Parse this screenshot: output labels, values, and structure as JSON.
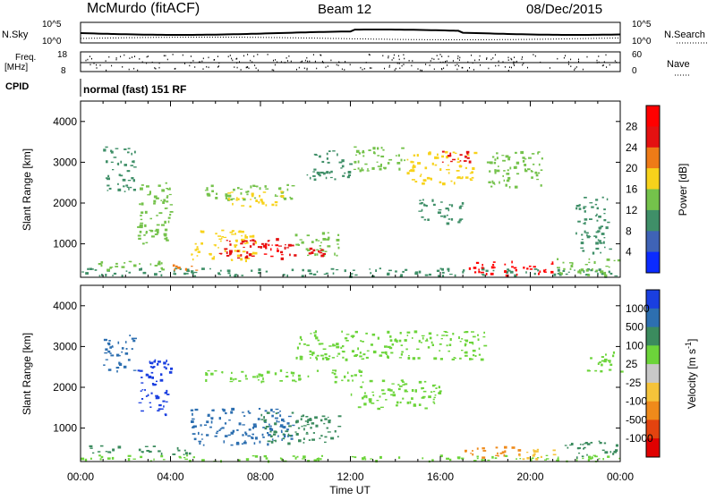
{
  "header": {
    "site": "McMurdo (fitACF)",
    "beam": "Beam 12",
    "date": "08/Dec/2015"
  },
  "strip_labels": {
    "nsky": "N.Sky",
    "freq_line1": "Freq.",
    "freq_line2": "[MHz]",
    "cpid": "CPID",
    "nsearch": "N.Search",
    "nave": "Nave",
    "cpid_text": "normal (fast) 151 RF",
    "nsky_tick_top": "10^5",
    "nsky_tick_bot": "10^0",
    "freq_tick_top": "18",
    "freq_tick_bot": "8",
    "nave_tick_top": "60",
    "nave_tick_bot": "0",
    "nsearch_tick_top": "10^5",
    "nsearch_tick_bot": "10^0"
  },
  "chart_data": [
    {
      "type": "heatmap",
      "panel": "power",
      "ylabel": "Slant Range [km]",
      "xlabel": "",
      "colorbar_label": "Power [dB]",
      "ylim": [
        180,
        4500
      ],
      "xlim": [
        "00:00",
        "24:00"
      ],
      "y_ticks": [
        1000,
        2000,
        3000,
        4000
      ],
      "x_ticks": [
        "00:00",
        "04:00",
        "08:00",
        "12:00",
        "16:00",
        "20:00",
        "00:00"
      ],
      "colorbar_ticks": [
        "4",
        "8",
        "12",
        "16",
        "20",
        "24",
        "28"
      ],
      "colorbar_colors": [
        "#0b2bff",
        "#3f63b6",
        "#3f8f68",
        "#74c24b",
        "#f7d21b",
        "#ee7b17",
        "#e41111",
        "#ff0000"
      ],
      "regions": [
        {
          "t": [
            0.0,
            24.0
          ],
          "r": [
            220,
            420
          ],
          "level": 8
        },
        {
          "t": [
            0.3,
            3.7
          ],
          "r": [
            380,
            600
          ],
          "level": 12
        },
        {
          "t": [
            4.0,
            5.2
          ],
          "r": [
            330,
            520
          ],
          "level": 20
        },
        {
          "t": [
            4.8,
            7.8
          ],
          "r": [
            600,
            1350
          ],
          "level": 16
        },
        {
          "t": [
            6.0,
            9.5
          ],
          "r": [
            650,
            1150
          ],
          "level": 24
        },
        {
          "t": [
            8.0,
            9.0
          ],
          "r": [
            700,
            1000
          ],
          "level": 28
        },
        {
          "t": [
            9.5,
            11.5
          ],
          "r": [
            700,
            1300
          ],
          "level": 12
        },
        {
          "t": [
            10.0,
            11.2
          ],
          "r": [
            720,
            1000
          ],
          "level": 24
        },
        {
          "t": [
            17.2,
            21.0
          ],
          "r": [
            250,
            600
          ],
          "level": 28
        },
        {
          "t": [
            21.0,
            24.0
          ],
          "r": [
            250,
            650
          ],
          "level": 12
        },
        {
          "t": [
            1.0,
            2.4
          ],
          "r": [
            2300,
            3400
          ],
          "level": 8
        },
        {
          "t": [
            2.5,
            4.0
          ],
          "r": [
            1000,
            2600
          ],
          "level": 12
        },
        {
          "t": [
            5.5,
            9.5
          ],
          "r": [
            2100,
            2500
          ],
          "level": 12
        },
        {
          "t": [
            6.5,
            9.0
          ],
          "r": [
            1900,
            2300
          ],
          "level": 16
        },
        {
          "t": [
            10.0,
            12.0
          ],
          "r": [
            2600,
            3300
          ],
          "level": 8
        },
        {
          "t": [
            12.0,
            14.5
          ],
          "r": [
            2800,
            3400
          ],
          "level": 12
        },
        {
          "t": [
            14.5,
            17.5
          ],
          "r": [
            2500,
            3300
          ],
          "level": 16
        },
        {
          "t": [
            16.0,
            17.3
          ],
          "r": [
            2900,
            3300
          ],
          "level": 24
        },
        {
          "t": [
            18.0,
            20.5
          ],
          "r": [
            2400,
            3300
          ],
          "level": 12
        },
        {
          "t": [
            15.0,
            17.0
          ],
          "r": [
            1500,
            2100
          ],
          "level": 8
        },
        {
          "t": [
            22.0,
            23.5
          ],
          "r": [
            800,
            2200
          ],
          "level": 8
        }
      ]
    },
    {
      "type": "heatmap",
      "panel": "velocity",
      "ylabel": "Slant Range [km]",
      "xlabel": "Time UT",
      "colorbar_label": "Velocity [m s^-1]",
      "ylim": [
        180,
        4500
      ],
      "xlim": [
        "00:00",
        "24:00"
      ],
      "y_ticks": [
        1000,
        2000,
        3000,
        4000
      ],
      "x_ticks": [
        "00:00",
        "04:00",
        "08:00",
        "12:00",
        "16:00",
        "20:00",
        "00:00"
      ],
      "colorbar_ticks": [
        "1000",
        "500",
        "100",
        "25",
        "-25",
        "-100",
        "-500",
        "-1000"
      ],
      "colorbar_colors": [
        "#1a3fe0",
        "#2d6fb0",
        "#3b8b5e",
        "#6cd43a",
        "#c8c8c8",
        "#f5c33a",
        "#ef8a1a",
        "#e3430f",
        "#e00000"
      ],
      "regions": [
        {
          "t": [
            0.0,
            24.0
          ],
          "r": [
            200,
            350
          ],
          "level": 25
        },
        {
          "t": [
            0.3,
            3.7
          ],
          "r": [
            380,
            580
          ],
          "level": 100
        },
        {
          "t": [
            4.0,
            5.3
          ],
          "r": [
            350,
            550
          ],
          "level": 100
        },
        {
          "t": [
            4.8,
            9.5
          ],
          "r": [
            600,
            1500
          ],
          "level": 500
        },
        {
          "t": [
            8.0,
            11.5
          ],
          "r": [
            650,
            1400
          ],
          "level": 100
        },
        {
          "t": [
            5.5,
            12.5
          ],
          "r": [
            2150,
            2450
          ],
          "level": 25
        },
        {
          "t": [
            9.5,
            18.0
          ],
          "r": [
            2700,
            3400
          ],
          "level": 25
        },
        {
          "t": [
            17.0,
            19.5
          ],
          "r": [
            300,
            600
          ],
          "level": -500
        },
        {
          "t": [
            19.5,
            21.5
          ],
          "r": [
            250,
            500
          ],
          "level": -100
        },
        {
          "t": [
            21.5,
            24.0
          ],
          "r": [
            300,
            700
          ],
          "level": 100
        },
        {
          "t": [
            1.0,
            2.4
          ],
          "r": [
            2400,
            3300
          ],
          "level": 500
        },
        {
          "t": [
            2.5,
            4.0
          ],
          "r": [
            1300,
            2700
          ],
          "level": 1000
        },
        {
          "t": [
            12.0,
            16.0
          ],
          "r": [
            1500,
            2200
          ],
          "level": 25
        },
        {
          "t": [
            22.5,
            24.0
          ],
          "r": [
            2400,
            2900
          ],
          "level": 25
        }
      ]
    }
  ]
}
